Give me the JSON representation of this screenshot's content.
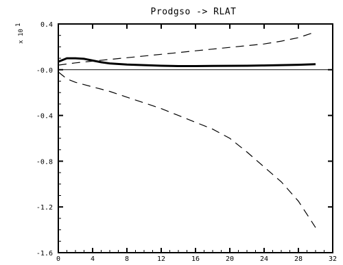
{
  "chart_data": {
    "type": "line",
    "title": "Prodgso -> RLAT",
    "xlabel": "",
    "ylabel": "",
    "y_scale_label": "x 10",
    "y_scale_exponent": "1",
    "xlim": [
      0,
      32
    ],
    "ylim": [
      -1.6,
      0.4
    ],
    "x_ticks": [
      0,
      4,
      8,
      12,
      16,
      20,
      24,
      28,
      32
    ],
    "x_tick_labels": [
      "0",
      "4",
      "8",
      "12",
      "16",
      "20",
      "24",
      "28",
      "32"
    ],
    "y_ticks": [
      0.4,
      0.0,
      -0.4,
      -0.8,
      -1.2,
      -1.6
    ],
    "y_tick_labels": [
      "0.4",
      "-0.0",
      "-0.4",
      "-0.8",
      "-1.2",
      "-1.6"
    ],
    "zero_line": true,
    "grid": false,
    "series": [
      {
        "style": "solid-thick",
        "x": [
          0,
          1,
          2,
          3,
          4,
          5,
          6,
          8,
          10,
          12,
          14,
          16,
          18,
          20,
          22,
          24,
          26,
          28,
          30
        ],
        "values": [
          0.07,
          0.1,
          0.1,
          0.095,
          0.08,
          0.065,
          0.055,
          0.045,
          0.04,
          0.035,
          0.032,
          0.032,
          0.033,
          0.034,
          0.035,
          0.037,
          0.04,
          0.043,
          0.048
        ]
      },
      {
        "style": "dashed-upper",
        "x": [
          0,
          2,
          4,
          6,
          8,
          10,
          12,
          14,
          16,
          18,
          20,
          22,
          24,
          26,
          28,
          30
        ],
        "values": [
          0.04,
          0.06,
          0.075,
          0.09,
          0.105,
          0.12,
          0.135,
          0.15,
          0.165,
          0.18,
          0.195,
          0.21,
          0.225,
          0.25,
          0.28,
          0.33
        ]
      },
      {
        "style": "dashed-lower",
        "x": [
          0,
          1,
          2,
          4,
          6,
          8,
          10,
          12,
          14,
          16,
          18,
          20,
          22,
          24,
          26,
          28,
          30
        ],
        "values": [
          -0.02,
          -0.08,
          -0.11,
          -0.15,
          -0.19,
          -0.24,
          -0.29,
          -0.34,
          -0.4,
          -0.46,
          -0.52,
          -0.6,
          -0.72,
          -0.85,
          -0.98,
          -1.15,
          -1.38
        ]
      }
    ]
  }
}
